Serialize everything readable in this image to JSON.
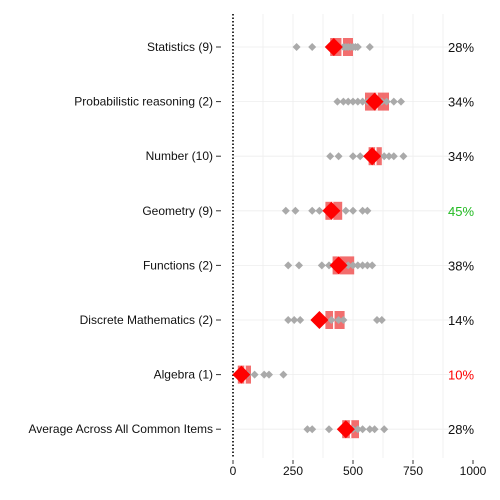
{
  "chart_data": {
    "type": "scatter",
    "title": "",
    "xlabel": "",
    "ylabel": "",
    "xlim": [
      0,
      1000
    ],
    "x_ticks": [
      0,
      250,
      500,
      750,
      1000
    ],
    "x_tick_labels": [
      "0",
      "250",
      "500",
      "750",
      "1000"
    ],
    "grid": true,
    "colors": {
      "item_point": "#aaaaaa",
      "mean_marker": "#ff0000",
      "box": "#f05555",
      "percent_default": "#111111",
      "percent_high": "#22bb22",
      "percent_low": "#ff0000",
      "zero_line": "#000000",
      "grid": "#eeeeee"
    },
    "categories": [
      {
        "label": "Statistics (9)",
        "percent": "28%",
        "percent_status": "default",
        "mean": 420,
        "box": [
          405,
          500
        ],
        "median": 455,
        "points": [
          265,
          330,
          400,
          440,
          460,
          470,
          480,
          490,
          500,
          510,
          520,
          570
        ]
      },
      {
        "label": "Probabilistic reasoning (2)",
        "percent": "34%",
        "percent_status": "default",
        "mean": 590,
        "box": [
          550,
          650
        ],
        "median": 600,
        "points": [
          435,
          460,
          480,
          500,
          520,
          540,
          560,
          580,
          600,
          620,
          640,
          670,
          700
        ]
      },
      {
        "label": "Number (10)",
        "percent": "34%",
        "percent_status": "default",
        "mean": 580,
        "box": [
          565,
          620
        ],
        "median": 595,
        "points": [
          405,
          440,
          500,
          530,
          560,
          600,
          630,
          650,
          670,
          710
        ]
      },
      {
        "label": "Geometry (9)",
        "percent": "45%",
        "percent_status": "high",
        "mean": 410,
        "box": [
          385,
          455
        ],
        "median": 415,
        "points": [
          220,
          260,
          330,
          360,
          400,
          430,
          470,
          500,
          540,
          560
        ]
      },
      {
        "label": "Functions (2)",
        "percent": "38%",
        "percent_status": "default",
        "mean": 440,
        "box": [
          415,
          505
        ],
        "median": 440,
        "points": [
          230,
          275,
          370,
          400,
          450,
          480,
          500,
          520,
          540,
          560,
          580
        ]
      },
      {
        "label": "Discrete Mathematics (2)",
        "percent": "14%",
        "percent_status": "default",
        "mean": 360,
        "box": [
          385,
          465
        ],
        "median": 420,
        "points": [
          230,
          255,
          280,
          340,
          380,
          410,
          440,
          460,
          600,
          620
        ]
      },
      {
        "label": "Algebra (1)",
        "percent": "10%",
        "percent_status": "low",
        "mean": 35,
        "box": [
          20,
          75
        ],
        "median": 50,
        "points": [
          20,
          40,
          60,
          90,
          130,
          150,
          210
        ]
      },
      {
        "label": "Average Across All Common Items",
        "percent": "28%",
        "percent_status": "default",
        "mean": 470,
        "box": [
          455,
          525
        ],
        "median": 490,
        "points": [
          310,
          330,
          400,
          460,
          480,
          500,
          520,
          540,
          570,
          590,
          630
        ]
      }
    ]
  }
}
